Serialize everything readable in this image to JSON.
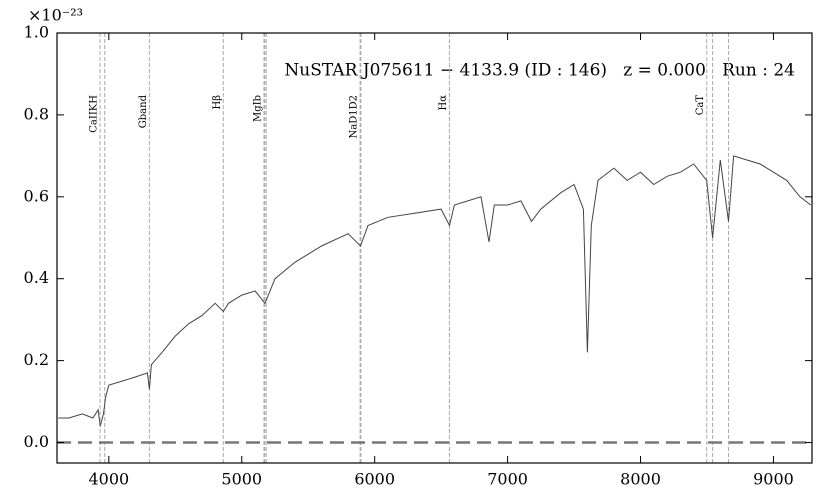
{
  "chart_data": {
    "type": "line",
    "title": "NuSTAR J075611 − 4133.9 (ID : 146)   z = 0.000   Run : 24",
    "y_multiplier": "×10⁻²³",
    "x": [
      3620,
      3700,
      3800,
      3880,
      3920,
      3935,
      3960,
      3975,
      4000,
      4100,
      4200,
      4290,
      4305,
      4320,
      4400,
      4500,
      4600,
      4700,
      4800,
      4861,
      4900,
      5000,
      5100,
      5175,
      5250,
      5400,
      5600,
      5800,
      5893,
      5950,
      6100,
      6300,
      6500,
      6563,
      6600,
      6800,
      6860,
      6900,
      7000,
      7100,
      7180,
      7250,
      7400,
      7500,
      7570,
      7600,
      7630,
      7680,
      7800,
      7900,
      8000,
      8100,
      8200,
      8300,
      8400,
      8498,
      8542,
      8600,
      8662,
      8700,
      8800,
      8900,
      9000,
      9100,
      9200,
      9280
    ],
    "series": [
      {
        "color": "#444444",
        "values": [
          0.06,
          0.06,
          0.07,
          0.06,
          0.08,
          0.04,
          0.07,
          0.11,
          0.14,
          0.15,
          0.16,
          0.17,
          0.13,
          0.19,
          0.22,
          0.26,
          0.29,
          0.31,
          0.34,
          0.32,
          0.34,
          0.36,
          0.37,
          0.34,
          0.4,
          0.44,
          0.48,
          0.51,
          0.48,
          0.53,
          0.55,
          0.56,
          0.57,
          0.53,
          0.58,
          0.6,
          0.49,
          0.58,
          0.58,
          0.59,
          0.54,
          0.57,
          0.61,
          0.63,
          0.57,
          0.22,
          0.53,
          0.64,
          0.67,
          0.64,
          0.66,
          0.63,
          0.65,
          0.66,
          0.68,
          0.64,
          0.5,
          0.69,
          0.54,
          0.7,
          0.69,
          0.68,
          0.66,
          0.64,
          0.6,
          0.58
        ]
      }
    ],
    "line_ids": [
      {
        "label": "CaIIKH",
        "wavelengths": [
          3934,
          3969
        ]
      },
      {
        "label": "Gband",
        "wavelengths": [
          4305
        ]
      },
      {
        "label": "Hβ",
        "wavelengths": [
          4861
        ]
      },
      {
        "label": "MgIb",
        "wavelengths": [
          5167,
          5173,
          5184
        ]
      },
      {
        "label": "NaD1D2",
        "wavelengths": [
          5890,
          5896
        ]
      },
      {
        "label": "Hα",
        "wavelengths": [
          6563
        ]
      },
      {
        "label": "CaT",
        "wavelengths": [
          8498,
          8542,
          8662
        ]
      }
    ],
    "hline": 0,
    "xlim": [
      3610,
      9290
    ],
    "ylim": [
      -0.05,
      1.0
    ],
    "xticks": [
      4000,
      5000,
      6000,
      7000,
      8000,
      9000
    ],
    "yticks": [
      {
        "value": 0,
        "label": "0.0"
      },
      0.2,
      0.4,
      0.6,
      0.8,
      {
        "value": 1,
        "label": "1.0"
      }
    ]
  }
}
